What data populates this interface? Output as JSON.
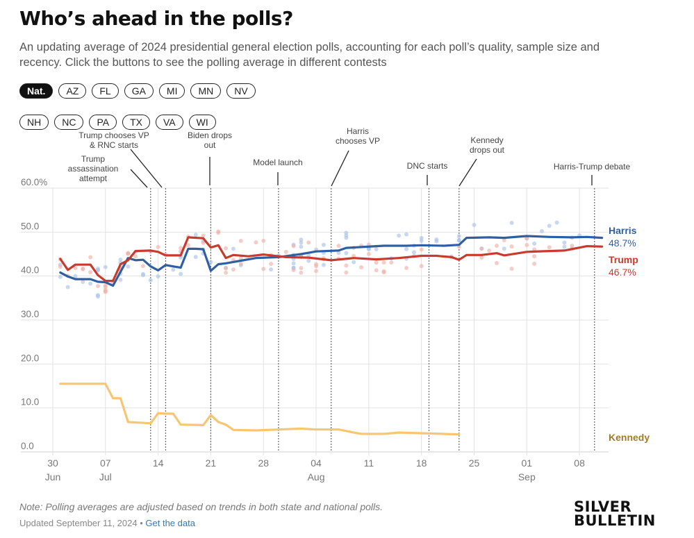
{
  "header": {
    "title": "Who’s ahead in the polls?",
    "subtitle": "An updating average of 2024 presidential general election polls, accounting for each poll’s quality, sample size and recency. Click the buttons to see the polling average in different contests"
  },
  "buttons": {
    "row1": [
      "Nat.",
      "AZ",
      "FL",
      "GA",
      "MI",
      "MN",
      "NV"
    ],
    "row2": [
      "NH",
      "NC",
      "PA",
      "TX",
      "VA",
      "WI"
    ],
    "active": "Nat."
  },
  "colors": {
    "harris": "#2f5fa3",
    "trump": "#c83a2c",
    "kennedy": "#f8c572",
    "harris_label": "#2f5fa3",
    "trump_label": "#c83a2c",
    "kennedy_label": "#a07a30",
    "grid": "#e2e2e2",
    "axis_text": "#777777"
  },
  "chart_data": {
    "type": "line",
    "x_start": "2024-06-30",
    "x_end": "2024-09-11",
    "ylim": [
      0,
      60
    ],
    "yticks": [
      "0.0",
      "10.0",
      "20.0",
      "30.0",
      "40.0",
      "50.0",
      "60.0%"
    ],
    "ytick_values": [
      0,
      10,
      20,
      30,
      40,
      50,
      60
    ],
    "xticks": [
      {
        "date": "2024-06-30",
        "label": "30",
        "month": "Jun"
      },
      {
        "date": "2024-07-07",
        "label": "07",
        "month": "Jul"
      },
      {
        "date": "2024-07-14",
        "label": "14",
        "month": ""
      },
      {
        "date": "2024-07-21",
        "label": "21",
        "month": ""
      },
      {
        "date": "2024-07-28",
        "label": "28",
        "month": ""
      },
      {
        "date": "2024-08-04",
        "label": "04",
        "month": "Aug"
      },
      {
        "date": "2024-08-11",
        "label": "11",
        "month": ""
      },
      {
        "date": "2024-08-18",
        "label": "18",
        "month": ""
      },
      {
        "date": "2024-08-25",
        "label": "25",
        "month": ""
      },
      {
        "date": "2024-09-01",
        "label": "01",
        "month": "Sep"
      },
      {
        "date": "2024-09-08",
        "label": "08",
        "month": ""
      }
    ],
    "events": [
      {
        "date": "2024-07-13",
        "label": [
          "Trump",
          "assassination",
          "attempt"
        ],
        "anchor": "left"
      },
      {
        "date": "2024-07-15",
        "label": [
          "Trump chooses VP",
          "& RNC starts"
        ],
        "anchor": "left"
      },
      {
        "date": "2024-07-21",
        "label": [
          "Biden drops",
          "out"
        ],
        "anchor": "center"
      },
      {
        "date": "2024-07-30",
        "label": [
          "Model launch"
        ],
        "anchor": "center"
      },
      {
        "date": "2024-08-06",
        "label": [
          "Harris",
          "chooses VP"
        ],
        "anchor": "right"
      },
      {
        "date": "2024-08-19",
        "label": [
          "DNC starts"
        ],
        "anchor": "center"
      },
      {
        "date": "2024-08-23",
        "label": [
          "Kennedy",
          "drops out"
        ],
        "anchor": "right"
      },
      {
        "date": "2024-09-10",
        "label": [
          "Harris-Trump debate"
        ],
        "anchor": "center"
      }
    ],
    "series": [
      {
        "name": "Harris",
        "final_label": "48.7%",
        "values": [
          [
            "2024-07-01",
            40.8
          ],
          [
            "2024-07-02",
            39.9
          ],
          [
            "2024-07-03",
            39.3
          ],
          [
            "2024-07-05",
            39.3
          ],
          [
            "2024-07-06",
            38.7
          ],
          [
            "2024-07-07",
            38.6
          ],
          [
            "2024-07-08",
            37.8
          ],
          [
            "2024-07-10",
            44.1
          ],
          [
            "2024-07-11",
            43.6
          ],
          [
            "2024-07-12",
            43.7
          ],
          [
            "2024-07-13",
            42.2
          ],
          [
            "2024-07-14",
            41.3
          ],
          [
            "2024-07-15",
            42.5
          ],
          [
            "2024-07-17",
            41.9
          ],
          [
            "2024-07-18",
            46.2
          ],
          [
            "2024-07-19",
            46.2
          ],
          [
            "2024-07-20",
            46.1
          ],
          [
            "2024-07-21",
            41.2
          ],
          [
            "2024-07-22",
            42.7
          ],
          [
            "2024-07-23",
            42.9
          ],
          [
            "2024-07-25",
            43.5
          ],
          [
            "2024-07-27",
            44.1
          ],
          [
            "2024-07-30",
            44.3
          ],
          [
            "2024-08-02",
            45.0
          ],
          [
            "2024-08-04",
            45.6
          ],
          [
            "2024-08-07",
            45.8
          ],
          [
            "2024-08-08",
            46.4
          ],
          [
            "2024-08-10",
            46.6
          ],
          [
            "2024-08-13",
            46.9
          ],
          [
            "2024-08-16",
            46.9
          ],
          [
            "2024-08-18",
            47.0
          ],
          [
            "2024-08-21",
            46.9
          ],
          [
            "2024-08-23",
            47.1
          ],
          [
            "2024-08-24",
            48.7
          ],
          [
            "2024-08-27",
            48.8
          ],
          [
            "2024-08-29",
            48.7
          ],
          [
            "2024-09-01",
            49.1
          ],
          [
            "2024-09-04",
            48.9
          ],
          [
            "2024-09-07",
            48.8
          ],
          [
            "2024-09-09",
            48.9
          ],
          [
            "2024-09-11",
            48.7
          ]
        ]
      },
      {
        "name": "Trump",
        "final_label": "46.7%",
        "values": [
          [
            "2024-07-01",
            43.9
          ],
          [
            "2024-07-02",
            41.4
          ],
          [
            "2024-07-03",
            42.6
          ],
          [
            "2024-07-05",
            42.6
          ],
          [
            "2024-07-06",
            40.2
          ],
          [
            "2024-07-07",
            38.9
          ],
          [
            "2024-07-08",
            38.9
          ],
          [
            "2024-07-09",
            42.7
          ],
          [
            "2024-07-10",
            43.6
          ],
          [
            "2024-07-11",
            45.7
          ],
          [
            "2024-07-13",
            45.8
          ],
          [
            "2024-07-14",
            45.5
          ],
          [
            "2024-07-15",
            44.7
          ],
          [
            "2024-07-17",
            44.7
          ],
          [
            "2024-07-18",
            48.8
          ],
          [
            "2024-07-20",
            48.6
          ],
          [
            "2024-07-21",
            46.5
          ],
          [
            "2024-07-22",
            47.0
          ],
          [
            "2024-07-23",
            44.1
          ],
          [
            "2024-07-24",
            44.8
          ],
          [
            "2024-07-26",
            44.5
          ],
          [
            "2024-07-28",
            44.9
          ],
          [
            "2024-07-31",
            44.3
          ],
          [
            "2024-08-03",
            44.2
          ],
          [
            "2024-08-06",
            43.6
          ],
          [
            "2024-08-09",
            44.1
          ],
          [
            "2024-08-12",
            43.8
          ],
          [
            "2024-08-15",
            44.1
          ],
          [
            "2024-08-18",
            44.6
          ],
          [
            "2024-08-20",
            44.6
          ],
          [
            "2024-08-22",
            44.3
          ],
          [
            "2024-08-23",
            43.7
          ],
          [
            "2024-08-24",
            44.8
          ],
          [
            "2024-08-26",
            44.8
          ],
          [
            "2024-08-28",
            45.2
          ],
          [
            "2024-08-29",
            44.7
          ],
          [
            "2024-09-01",
            45.5
          ],
          [
            "2024-09-04",
            45.7
          ],
          [
            "2024-09-06",
            45.8
          ],
          [
            "2024-09-09",
            46.8
          ],
          [
            "2024-09-11",
            46.7
          ]
        ]
      },
      {
        "name": "Kennedy",
        "final_label": "",
        "values": [
          [
            "2024-07-01",
            15.5
          ],
          [
            "2024-07-07",
            15.5
          ],
          [
            "2024-07-08",
            12.2
          ],
          [
            "2024-07-09",
            12.2
          ],
          [
            "2024-07-10",
            6.8
          ],
          [
            "2024-07-12",
            6.6
          ],
          [
            "2024-07-13",
            6.5
          ],
          [
            "2024-07-14",
            8.8
          ],
          [
            "2024-07-15",
            8.7
          ],
          [
            "2024-07-16",
            8.7
          ],
          [
            "2024-07-17",
            6.2
          ],
          [
            "2024-07-20",
            6.1
          ],
          [
            "2024-07-21",
            8.4
          ],
          [
            "2024-07-22",
            6.8
          ],
          [
            "2024-07-23",
            6.2
          ],
          [
            "2024-07-24",
            5.0
          ],
          [
            "2024-07-27",
            4.9
          ],
          [
            "2024-07-30",
            5.1
          ],
          [
            "2024-08-02",
            5.3
          ],
          [
            "2024-08-04",
            5.1
          ],
          [
            "2024-08-07",
            5.1
          ],
          [
            "2024-08-09",
            4.4
          ],
          [
            "2024-08-10",
            4.1
          ],
          [
            "2024-08-13",
            4.1
          ],
          [
            "2024-08-15",
            4.4
          ],
          [
            "2024-08-19",
            4.2
          ],
          [
            "2024-08-23",
            4.0
          ]
        ]
      }
    ]
  },
  "footer": {
    "note": "Note: Polling averages are adjusted based on trends in both state and national polls.",
    "updated": "Updated September 11, 2024",
    "separator": " • ",
    "link": "Get the data",
    "logo_line1": "SILVER",
    "logo_line2": "BULLETIN"
  }
}
